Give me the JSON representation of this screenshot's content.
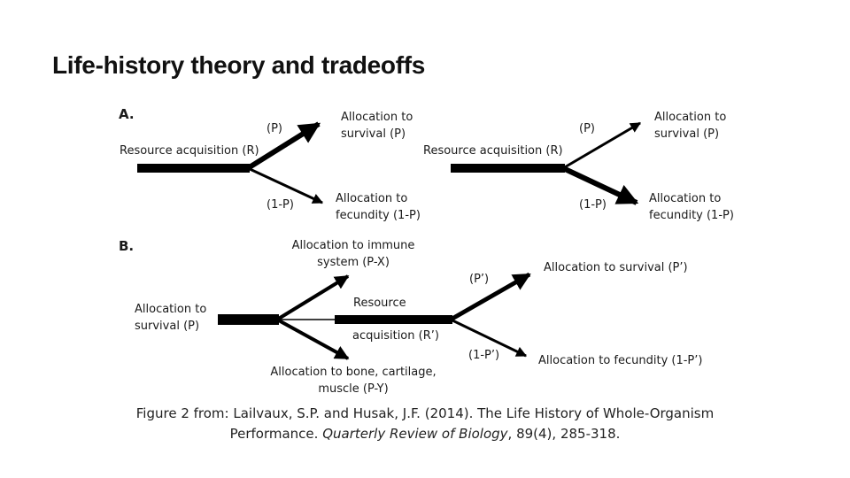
{
  "slide": {
    "title": "Life-history theory and tradeoffs"
  },
  "figure": {
    "panel_a": {
      "label": "A.",
      "left": {
        "source": "Resource acquisition (R)",
        "upper_coef": "(P)",
        "upper_target": [
          "Allocation to",
          "survival (P)"
        ],
        "lower_coef": "(1-P)",
        "lower_target": [
          "Allocation to",
          "fecundity (1-P)"
        ]
      },
      "right": {
        "source": "Resource acquisition (R)",
        "upper_coef": "(P)",
        "upper_target": [
          "Allocation to",
          "survival (P)"
        ],
        "lower_coef": "(1-P)",
        "lower_target": [
          "Allocation to",
          "fecundity (1-P)"
        ]
      }
    },
    "panel_b": {
      "label": "B.",
      "source": [
        "Allocation to",
        "survival (P)"
      ],
      "immune": [
        "Allocation to immune",
        "system (P-X)"
      ],
      "bone": [
        "Allocation to bone, cartilage,",
        "muscle (P-Y)"
      ],
      "resource_top": "Resource",
      "resource_bottom": "acquisition (R’)",
      "upper_coef": "(P’)",
      "upper_target": "Allocation to survival (P’)",
      "lower_coef": "(1-P’)",
      "lower_target": "Allocation to fecundity (1-P’)"
    }
  },
  "caption": {
    "line1": "Figure 2 from: Lailvaux, S.P. and Husak, J.F. (2014). The Life History of Whole-Organism",
    "line2_before": "Performance.",
    "line2_journal": "Quarterly Review of Biology",
    "line2_after": ", 89(4), 285-318."
  }
}
